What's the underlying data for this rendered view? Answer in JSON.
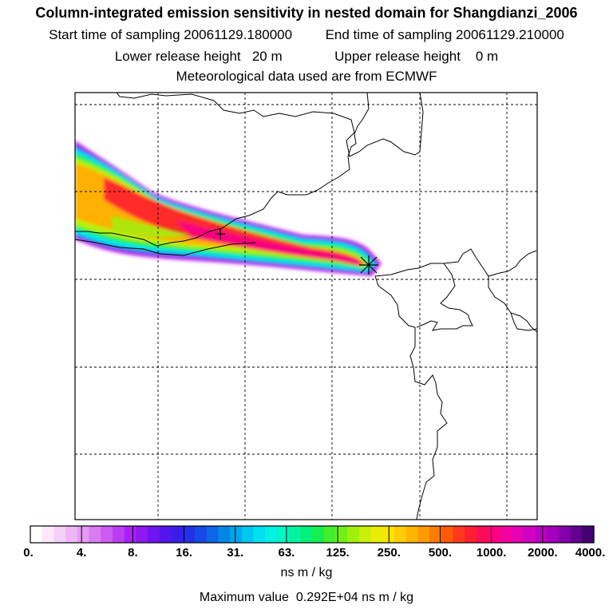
{
  "header": {
    "title": "Column-integrated emission sensitivity in nested domain for Shangdianzi_2006",
    "start_label": "Start time of sampling",
    "start_value": "20061129.180000",
    "end_label": "End time of sampling",
    "end_value": "20061129.210000",
    "lower_label": "Lower release height",
    "lower_value": "20 m",
    "upper_label": "Upper release height",
    "upper_value": "0 m",
    "met_line": "Meteorological data used are from ECMWF"
  },
  "map": {
    "release_marker": "release-site-cross-icon",
    "colors": {
      "frame": "#000000",
      "grid": "#000000",
      "coastline": "#000000"
    }
  },
  "colorbar": {
    "tick_labels": [
      "0.",
      "4.",
      "8.",
      "16.",
      "31.",
      "63.",
      "125.",
      "250.",
      "500.",
      "1000.",
      "2000.",
      "4000."
    ],
    "unit": "ns m / kg",
    "colors": [
      "#ffffff",
      "#fbe8fb",
      "#f5d0f7",
      "#eeb6f5",
      "#e59af3",
      "#d97cf3",
      "#cc5cf3",
      "#bb3df2",
      "#a722f2",
      "#8d18f0",
      "#7014ee",
      "#5216ec",
      "#381eea",
      "#2230e8",
      "#1648e6",
      "#0c66e6",
      "#0486e8",
      "#00a6ec",
      "#00c6f0",
      "#00e0f0",
      "#00f2e4",
      "#00f6c4",
      "#00f4a0",
      "#00f07a",
      "#14ee50",
      "#40ee2c",
      "#70f016",
      "#a0f00c",
      "#c8f008",
      "#e8ee06",
      "#fae404",
      "#ffcc02",
      "#ffb400",
      "#ff9a00",
      "#ff7c00",
      "#ff5a06",
      "#ff3a1c",
      "#ff1e34",
      "#ff0c58",
      "#fc0080",
      "#f400a0",
      "#e600b4",
      "#d200c0",
      "#bc00c4",
      "#a200bc",
      "#8400aa",
      "#640090",
      "#440070"
    ]
  },
  "footer": {
    "max_label": "Maximum value",
    "max_value": "0.292E+04",
    "max_unit": "ns m / kg"
  }
}
